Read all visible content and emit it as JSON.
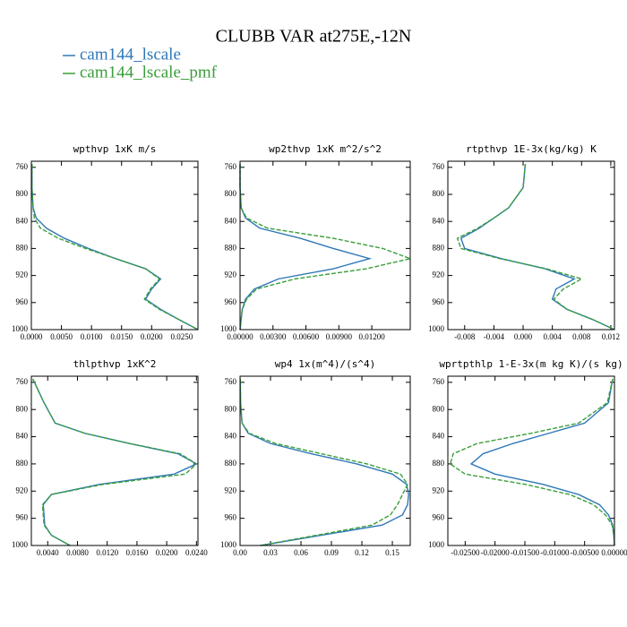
{
  "title": "CLUBB VAR at275E,-12N",
  "chart_data": [
    {
      "type": "line",
      "title": "wpthvp  1xK m/s",
      "y": [
        755,
        790,
        820,
        835,
        850,
        865,
        880,
        895,
        910,
        925,
        940,
        955,
        970,
        985,
        1000
      ],
      "series": [
        {
          "name": "cam144_lscale",
          "color": "#2f78b8",
          "values": [
            0.0001,
            0.0001,
            0.0003,
            0.0008,
            0.0025,
            0.0055,
            0.0095,
            0.014,
            0.019,
            0.0215,
            0.02,
            0.019,
            0.0215,
            0.0245,
            0.0277
          ]
        },
        {
          "name": "cam144_lscale_pmf",
          "color": "#3a9e3a",
          "values": [
            0.0001,
            0.0001,
            0.0003,
            0.0005,
            0.0015,
            0.0045,
            0.009,
            0.014,
            0.019,
            0.0213,
            0.0198,
            0.0188,
            0.0213,
            0.0245,
            0.0277
          ]
        }
      ],
      "xlim": [
        0,
        0.0277
      ],
      "ylim": [
        1000,
        751
      ],
      "xticks": [
        {
          "value": 0,
          "label": "0.0000"
        },
        {
          "value": 0.005,
          "label": "0.0050"
        },
        {
          "value": 0.01,
          "label": "0.0100"
        },
        {
          "value": 0.015,
          "label": "0.0150"
        },
        {
          "value": 0.02,
          "label": "0.0200"
        },
        {
          "value": 0.025,
          "label": "0.0250"
        }
      ],
      "yticks": [
        760,
        800,
        840,
        880,
        920,
        960,
        1000
      ]
    },
    {
      "type": "line",
      "title": "wp2thvp  1xK m^2/s^2",
      "y": [
        755,
        790,
        820,
        835,
        850,
        865,
        880,
        895,
        910,
        925,
        940,
        955,
        970,
        985,
        1000
      ],
      "series": [
        {
          "name": "cam144_lscale",
          "color": "#2f78b8",
          "values": [
            0,
            0,
            0.0001,
            0.0005,
            0.0018,
            0.0055,
            0.0085,
            0.0118,
            0.0085,
            0.0035,
            0.0013,
            0.0005,
            0.0002,
            0.0001,
            0
          ]
        },
        {
          "name": "cam144_lscale_pmf",
          "color": "#3a9e3a",
          "values": [
            0,
            0,
            0.0001,
            0.0006,
            0.0025,
            0.0085,
            0.013,
            0.0155,
            0.0115,
            0.005,
            0.0015,
            0.0006,
            0.0002,
            0.0001,
            0
          ]
        }
      ],
      "xlim": [
        0,
        0.0155
      ],
      "ylim": [
        1000,
        751
      ],
      "xticks": [
        {
          "value": 0,
          "label": "0.00000"
        },
        {
          "value": 0.003,
          "label": "0.00300"
        },
        {
          "value": 0.006,
          "label": "0.00600"
        },
        {
          "value": 0.009,
          "label": "0.00900"
        },
        {
          "value": 0.012,
          "label": "0.01200"
        }
      ],
      "yticks": [
        760,
        800,
        840,
        880,
        920,
        960,
        1000
      ]
    },
    {
      "type": "line",
      "title": "rtpthvp  1E-3x(kg/kg) K",
      "y": [
        755,
        790,
        820,
        835,
        850,
        865,
        880,
        895,
        910,
        925,
        940,
        955,
        970,
        985,
        1000
      ],
      "series": [
        {
          "name": "cam144_lscale",
          "color": "#2f78b8",
          "values": [
            0.0003,
            0.0,
            -0.002,
            -0.004,
            -0.006,
            -0.0085,
            -0.008,
            -0.003,
            0.003,
            0.007,
            0.0045,
            0.004,
            0.006,
            0.0095,
            0.0125
          ]
        },
        {
          "name": "cam144_lscale_pmf",
          "color": "#3a9e3a",
          "values": [
            0.0003,
            0.0,
            -0.002,
            -0.004,
            -0.0062,
            -0.009,
            -0.0085,
            -0.0032,
            0.0032,
            0.008,
            0.0055,
            0.0042,
            0.006,
            0.0095,
            0.0125
          ]
        }
      ],
      "xlim": [
        -0.0103,
        0.0125
      ],
      "ylim": [
        1000,
        751
      ],
      "xticks": [
        -0.008,
        -0.004,
        {
          "value": 0,
          "label": "0.000"
        },
        0.004,
        0.008,
        0.012
      ],
      "yticks": [
        760,
        800,
        840,
        880,
        920,
        960,
        1000
      ]
    },
    {
      "type": "line",
      "title": "thlpthvp  1xK^2",
      "y": [
        755,
        790,
        820,
        835,
        850,
        865,
        880,
        895,
        910,
        925,
        940,
        955,
        970,
        985,
        1000
      ],
      "series": [
        {
          "name": "cam144_lscale",
          "color": "#2f78b8",
          "values": [
            0.002,
            0.0035,
            0.005,
            0.009,
            0.015,
            0.0215,
            0.024,
            0.021,
            0.011,
            0.0045,
            0.0034,
            0.0035,
            0.0036,
            0.0045,
            0.007
          ]
        },
        {
          "name": "cam144_lscale_pmf",
          "color": "#3a9e3a",
          "values": [
            0.002,
            0.0035,
            0.005,
            0.009,
            0.015,
            0.0218,
            0.024,
            0.0225,
            0.0115,
            0.0045,
            0.0033,
            0.0034,
            0.0035,
            0.0045,
            0.007
          ]
        }
      ],
      "xlim": [
        0.0018,
        0.0242
      ],
      "ylim": [
        1000,
        751
      ],
      "xticks": [
        {
          "value": 0.004,
          "label": "0.0040"
        },
        {
          "value": 0.008,
          "label": "0.0080"
        },
        {
          "value": 0.012,
          "label": "0.0120"
        },
        {
          "value": 0.016,
          "label": "0.0160"
        },
        {
          "value": 0.02,
          "label": "0.0200"
        },
        {
          "value": 0.024,
          "label": "0.0240"
        }
      ],
      "yticks": [
        760,
        800,
        840,
        880,
        920,
        960,
        1000
      ]
    },
    {
      "type": "line",
      "title": "wp4  1x(m^4)/(s^4)",
      "y": [
        755,
        790,
        820,
        835,
        850,
        865,
        880,
        895,
        910,
        925,
        940,
        955,
        970,
        985,
        1000
      ],
      "series": [
        {
          "name": "cam144_lscale",
          "color": "#2f78b8",
          "values": [
            0.0002,
            0.0005,
            0.002,
            0.008,
            0.03,
            0.07,
            0.115,
            0.15,
            0.164,
            0.166,
            0.165,
            0.16,
            0.14,
            0.08,
            0.02
          ]
        },
        {
          "name": "cam144_lscale_pmf",
          "color": "#3a9e3a",
          "values": [
            0.0002,
            0.0005,
            0.002,
            0.009,
            0.035,
            0.08,
            0.125,
            0.158,
            0.165,
            0.16,
            0.155,
            0.148,
            0.13,
            0.075,
            0.02
          ]
        }
      ],
      "xlim": [
        0,
        0.1676
      ],
      "ylim": [
        1000,
        751
      ],
      "xticks": [
        {
          "value": 0,
          "label": "0.00"
        },
        0.03,
        0.06,
        0.09,
        0.12,
        0.15
      ],
      "yticks": [
        760,
        800,
        840,
        880,
        920,
        960,
        1000
      ]
    },
    {
      "type": "line",
      "title": "wprtpthlp  1-E-3x(m kg K)/(s kg)",
      "y": [
        755,
        790,
        820,
        835,
        850,
        865,
        880,
        895,
        910,
        925,
        940,
        955,
        970,
        985,
        1000
      ],
      "series": [
        {
          "name": "cam144_lscale",
          "color": "#2f78b8",
          "values": [
            -0.0003,
            -0.001,
            -0.005,
            -0.011,
            -0.017,
            -0.022,
            -0.024,
            -0.02,
            -0.012,
            -0.006,
            -0.0025,
            -0.001,
            -0.0003,
            -0.0001,
            0
          ]
        },
        {
          "name": "cam144_lscale_pmf",
          "color": "#3a9e3a",
          "values": [
            -0.0003,
            -0.0012,
            -0.006,
            -0.014,
            -0.023,
            -0.027,
            -0.0275,
            -0.025,
            -0.015,
            -0.0075,
            -0.0035,
            -0.0015,
            -0.0004,
            -0.0001,
            0
          ]
        }
      ],
      "xlim": [
        -0.0279,
        0
      ],
      "ylim": [
        1000,
        751
      ],
      "xticks": [
        {
          "value": -0.025,
          "label": "-0.02500"
        },
        {
          "value": -0.02,
          "label": "-0.02000"
        },
        {
          "value": -0.015,
          "label": "-0.01500"
        },
        {
          "value": -0.01,
          "label": "-0.01000"
        },
        {
          "value": -0.005,
          "label": "-0.00500"
        },
        {
          "value": 0,
          "label": "0.00000"
        }
      ],
      "yticks": [
        760,
        800,
        840,
        880,
        920,
        960,
        1000
      ]
    }
  ]
}
